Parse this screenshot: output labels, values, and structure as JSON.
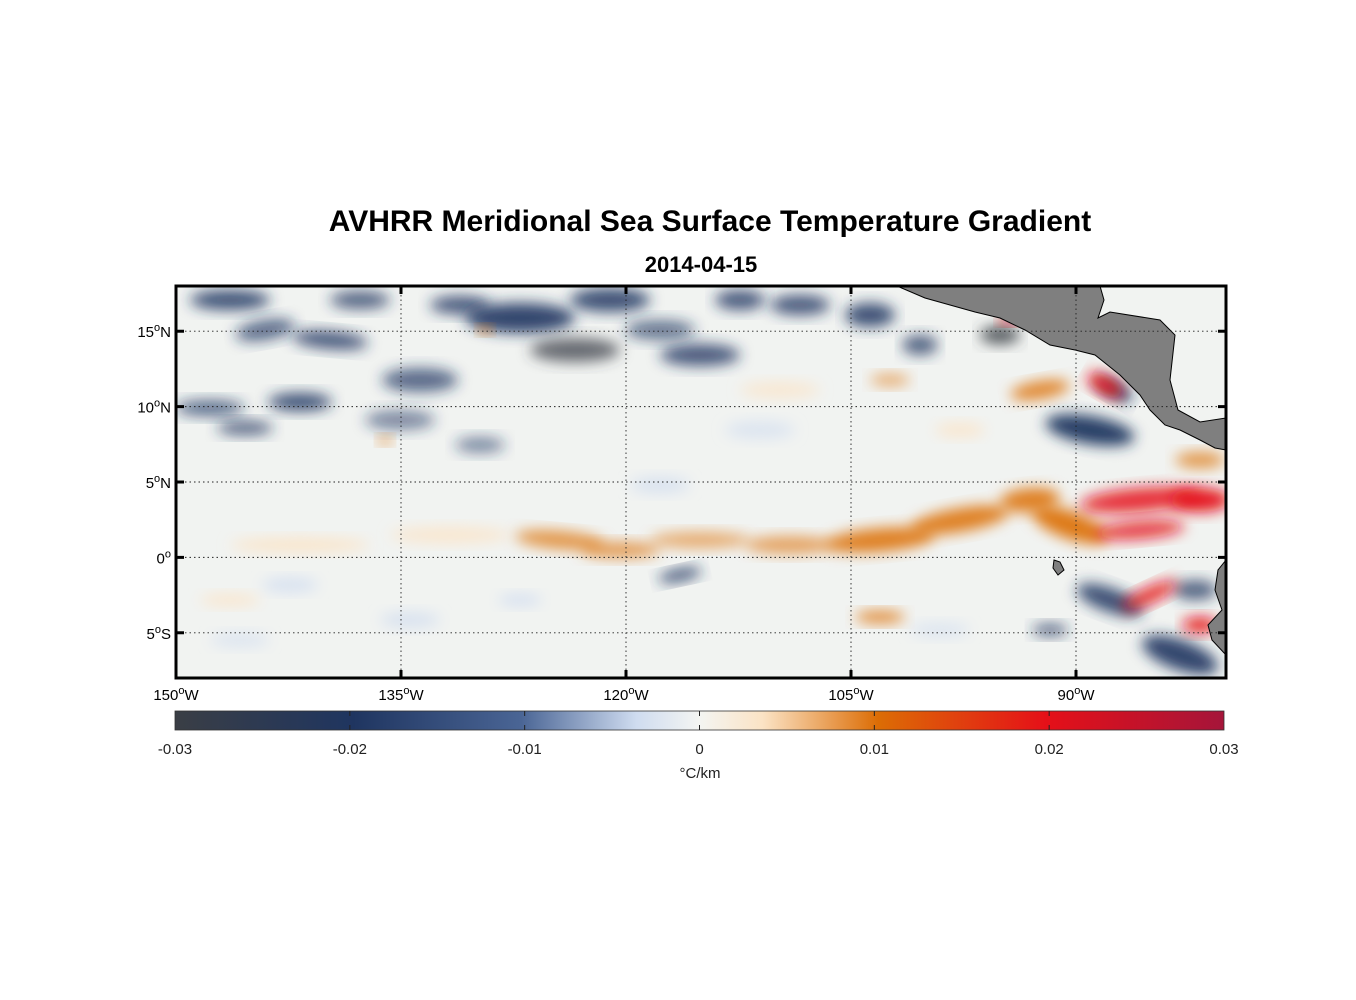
{
  "figure": {
    "title": "AVHRR Meridional Sea Surface Temperature Gradient",
    "subtitle": "2014-04-15"
  },
  "colorbar": {
    "label": "°C/km",
    "range": [
      -0.03,
      0.03
    ],
    "ticks": [
      "-0.03",
      "-0.02",
      "-0.01",
      "0",
      "0.01",
      "0.02",
      "0.03"
    ],
    "colors": {
      "strong_negative": "#3a3e45",
      "negative": "#1f3560",
      "weak_negative": "#cfdcf0",
      "zero": "#f4f5f2",
      "weak_positive": "#fbe3c5",
      "positive": "#dc6d05",
      "strong_positive": "#e51018",
      "max_positive": "#a5153a"
    }
  },
  "land_color": "#7f7f7f",
  "chart_data": {
    "type": "heatmap",
    "title": "AVHRR Meridional Sea Surface Temperature Gradient",
    "subtitle": "2014-04-15",
    "xlabel": "",
    "ylabel": "",
    "xlim": [
      -150,
      -80
    ],
    "ylim": [
      -8,
      18
    ],
    "grid": true,
    "x_ticks": [
      {
        "value": -150,
        "label": "150°W"
      },
      {
        "value": -135,
        "label": "135°W"
      },
      {
        "value": -120,
        "label": "120°W"
      },
      {
        "value": -105,
        "label": "105°W"
      },
      {
        "value": -90,
        "label": "90°W"
      }
    ],
    "y_ticks": [
      {
        "value": 15,
        "label": "15°N"
      },
      {
        "value": 10,
        "label": "10°N"
      },
      {
        "value": 5,
        "label": "5°N"
      },
      {
        "value": 0,
        "label": "0°"
      },
      {
        "value": -5,
        "label": "5°S"
      }
    ],
    "colorbar_label": "°C/km",
    "colorbar_range": [
      -0.03,
      0.03
    ]
  }
}
